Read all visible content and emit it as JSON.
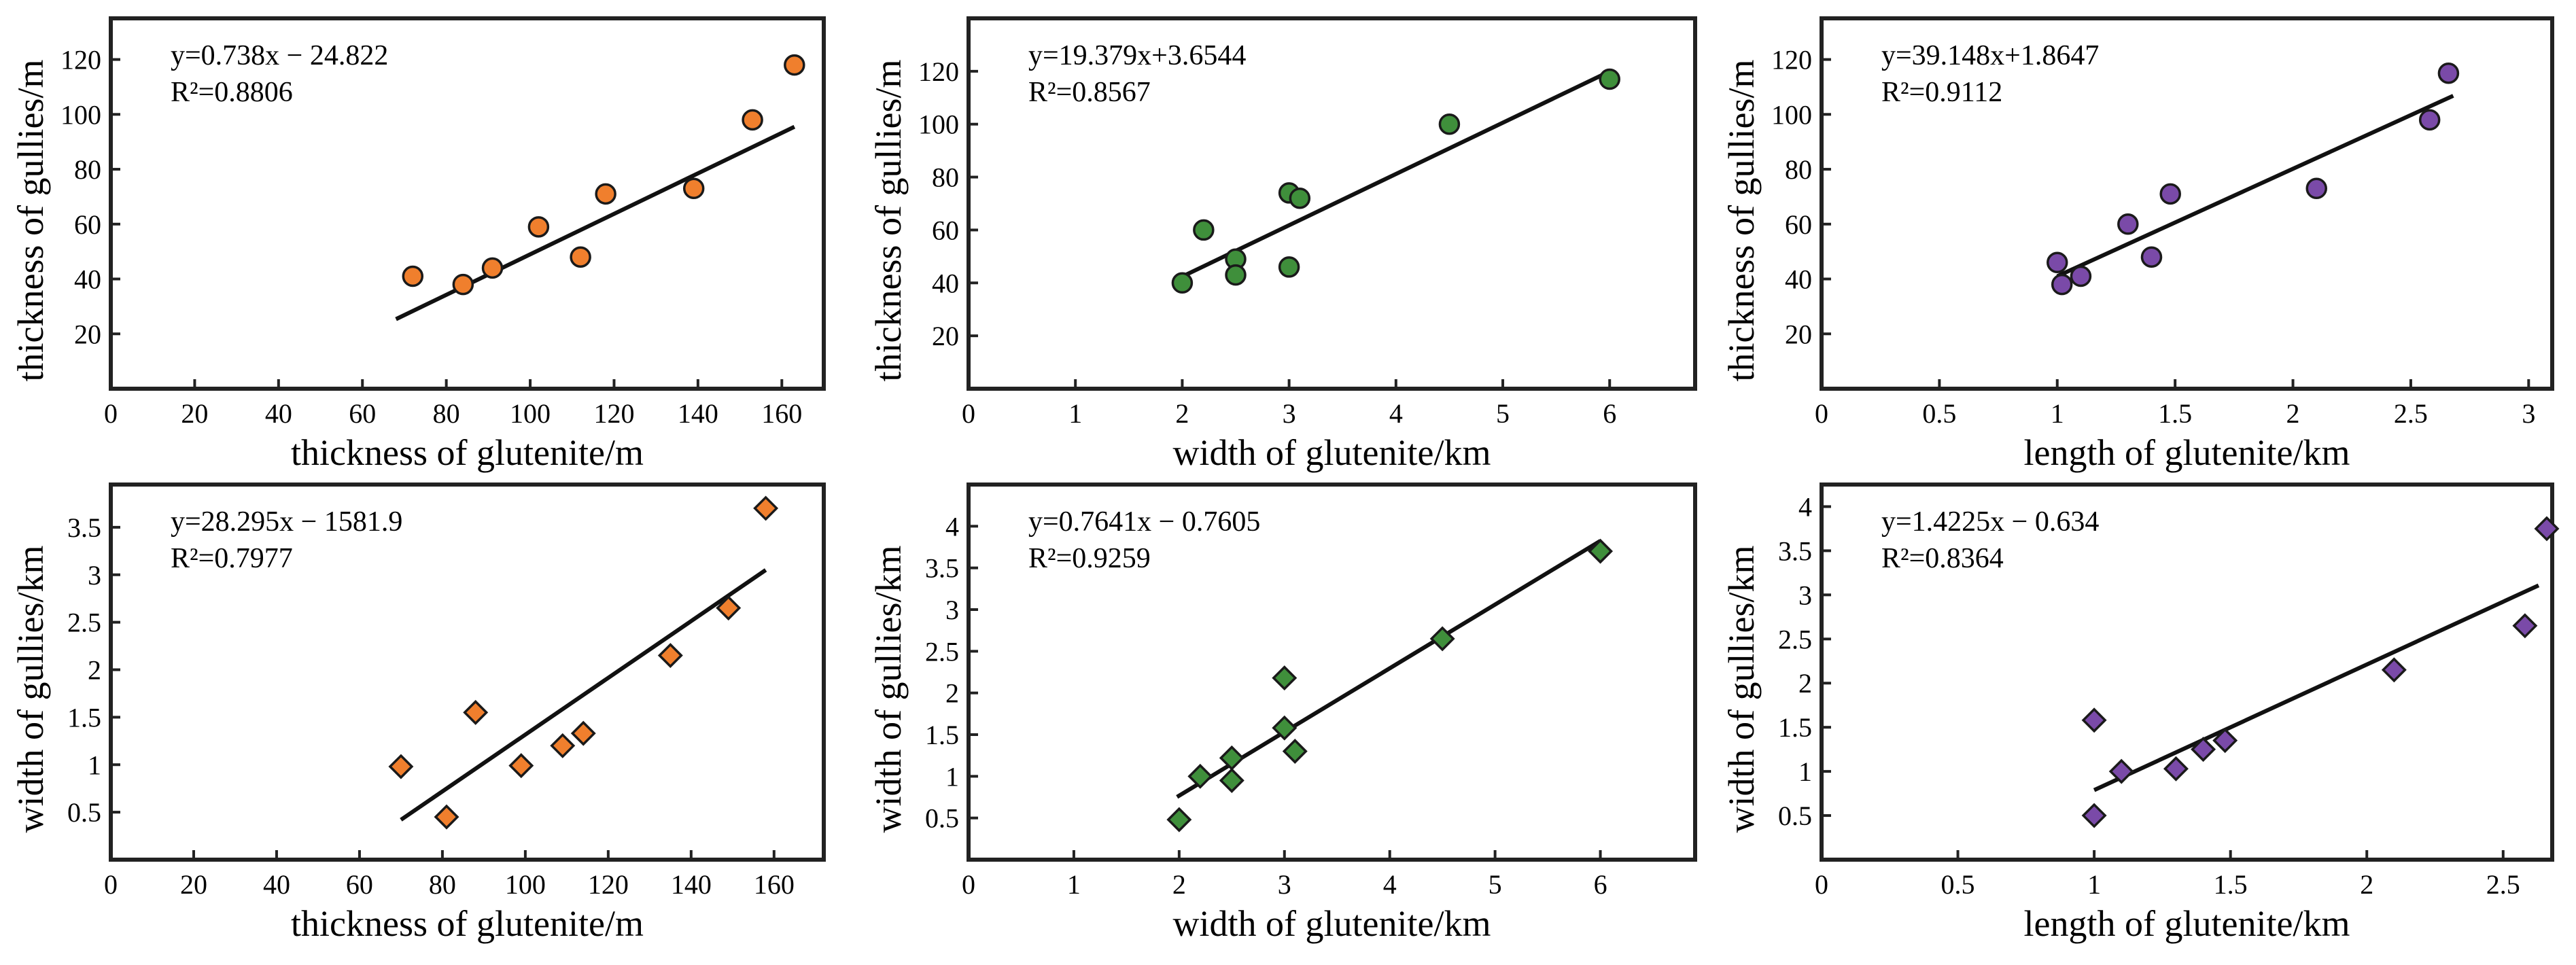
{
  "colors": {
    "orange": "#f07f2d",
    "green": "#3f8f3b",
    "purple": "#7a4aa8",
    "frame": "#222222",
    "marker_stroke": "#1a1a1a"
  },
  "chart_data": [
    {
      "id": "thk-vs-thk",
      "type": "scatter",
      "marker": "circle",
      "color_key": "orange",
      "xlabel": "thickness of glutenite/m",
      "ylabel": "thickness of gullies/m",
      "xlim": [
        0,
        170
      ],
      "ylim": [
        0,
        135
      ],
      "xticks": [
        0,
        20,
        40,
        60,
        80,
        100,
        120,
        140,
        160
      ],
      "yticks": [
        20,
        40,
        60,
        80,
        100,
        120
      ],
      "x": [
        72,
        84,
        91,
        102,
        112,
        118,
        139,
        153,
        163
      ],
      "y": [
        41,
        38,
        44,
        59,
        48,
        71,
        73,
        98,
        118
      ],
      "equation": "y=0.738x − 24.822",
      "r2_label": "R²=0.8806",
      "fit": {
        "slope": 0.738,
        "intercept": -24.822,
        "x_range": [
          68,
          163
        ]
      }
    },
    {
      "id": "thk-vs-width",
      "type": "scatter",
      "marker": "circle",
      "color_key": "green",
      "xlabel": "width of glutenite/km",
      "ylabel": "thickness of gullies/m",
      "xlim": [
        0,
        6.8
      ],
      "ylim": [
        0,
        140
      ],
      "xticks": [
        0,
        1,
        2,
        3,
        4,
        5,
        6
      ],
      "yticks": [
        20,
        40,
        60,
        80,
        100,
        120
      ],
      "x": [
        2.0,
        2.2,
        2.5,
        2.5,
        3.0,
        3.0,
        3.1,
        4.5,
        6.0
      ],
      "y": [
        40,
        60,
        49,
        43,
        74,
        46,
        72,
        100,
        117
      ],
      "equation": "y=19.379x+3.6544",
      "r2_label": "R²=0.8567",
      "fit": {
        "slope": 19.379,
        "intercept": 3.6544,
        "x_range": [
          1.95,
          6.0
        ]
      }
    },
    {
      "id": "thk-vs-length",
      "type": "scatter",
      "marker": "circle",
      "color_key": "purple",
      "xlabel": "length of glutenite/km",
      "ylabel": "thickness of gullies/m",
      "xlim": [
        0,
        3.1
      ],
      "ylim": [
        0,
        135
      ],
      "xticks": [
        0,
        0.5,
        1,
        1.5,
        2,
        2.5,
        3
      ],
      "yticks": [
        20,
        40,
        60,
        80,
        100,
        120
      ],
      "x": [
        1.0,
        1.02,
        1.1,
        1.3,
        1.4,
        1.48,
        2.1,
        2.58,
        2.66
      ],
      "y": [
        46,
        38,
        41,
        60,
        48,
        71,
        73,
        98,
        115
      ],
      "equation": "y=39.148x+1.8647",
      "r2_label": "R²=0.9112",
      "fit": {
        "slope": 39.148,
        "intercept": 1.8647,
        "x_range": [
          1.0,
          2.68
        ]
      }
    },
    {
      "id": "width-vs-thk",
      "type": "scatter",
      "marker": "diamond",
      "color_key": "orange",
      "xlabel": "thickness of glutenite/m",
      "ylabel": "width of gullies/km",
      "xlim": [
        0,
        172
      ],
      "ylim": [
        0,
        3.95
      ],
      "xticks": [
        0,
        20,
        40,
        60,
        80,
        100,
        120,
        140,
        160
      ],
      "yticks": [
        0.5,
        1,
        1.5,
        2,
        2.5,
        3,
        3.5
      ],
      "ytick_labels": [
        "0.5",
        "1",
        "1.5",
        "2",
        "2.5",
        "3",
        "3.5"
      ],
      "x": [
        70,
        81,
        88,
        99,
        109,
        114,
        135,
        149,
        158
      ],
      "y": [
        0.98,
        0.45,
        1.55,
        0.99,
        1.2,
        1.33,
        2.15,
        2.65,
        3.7
      ],
      "equation": "y=28.295x − 1581.9",
      "r2_label": "R²=0.7977",
      "fit": {
        "x_range": [
          70,
          158
        ],
        "y_range": [
          0.42,
          3.05
        ]
      }
    },
    {
      "id": "width-vs-width",
      "type": "scatter",
      "marker": "diamond",
      "color_key": "green",
      "xlabel": "width of glutenite/km",
      "ylabel": "width of gullies/km",
      "xlim": [
        0,
        6.9
      ],
      "ylim": [
        0,
        4.5
      ],
      "xticks": [
        0,
        1,
        2,
        3,
        4,
        5,
        6
      ],
      "yticks": [
        0.5,
        1,
        1.5,
        2,
        2.5,
        3,
        3.5,
        4
      ],
      "ytick_labels": [
        "0.5",
        "1",
        "1.5",
        "2",
        "2.5",
        "3",
        "3.5",
        "4"
      ],
      "x": [
        2.0,
        2.2,
        2.5,
        2.5,
        3.0,
        3.0,
        3.1,
        4.5,
        6.0
      ],
      "y": [
        0.48,
        1.0,
        0.95,
        1.22,
        2.18,
        1.58,
        1.3,
        2.65,
        3.7
      ],
      "equation": "y=0.7641x − 0.7605",
      "r2_label": "R²=0.9259",
      "fit": {
        "slope": 0.7641,
        "intercept": -0.7605,
        "x_range": [
          1.98,
          6.0
        ]
      }
    },
    {
      "id": "width-vs-length",
      "type": "scatter",
      "marker": "diamond",
      "color_key": "purple",
      "xlabel": "length of glutenite/km",
      "ylabel": "width of gullies/km",
      "xlim": [
        0,
        2.68
      ],
      "ylim": [
        0,
        4.25
      ],
      "xticks": [
        0,
        0.5,
        1,
        1.5,
        2,
        2.5
      ],
      "yticks": [
        0.5,
        1,
        1.5,
        2,
        2.5,
        3,
        3.5,
        4
      ],
      "ytick_labels": [
        "0.5",
        "1",
        "1.5",
        "2",
        "2.5",
        "3",
        "3.5",
        "4"
      ],
      "x": [
        1.0,
        1.0,
        1.1,
        1.3,
        1.4,
        1.48,
        2.1,
        2.58,
        2.66
      ],
      "y": [
        0.5,
        1.58,
        1.0,
        1.03,
        1.25,
        1.35,
        2.15,
        2.65,
        3.75
      ],
      "equation": "y=1.4225x − 0.634",
      "r2_label": "R²=0.8364",
      "fit": {
        "slope": 1.4225,
        "intercept": -0.634,
        "x_range": [
          1.0,
          2.63
        ]
      }
    }
  ]
}
